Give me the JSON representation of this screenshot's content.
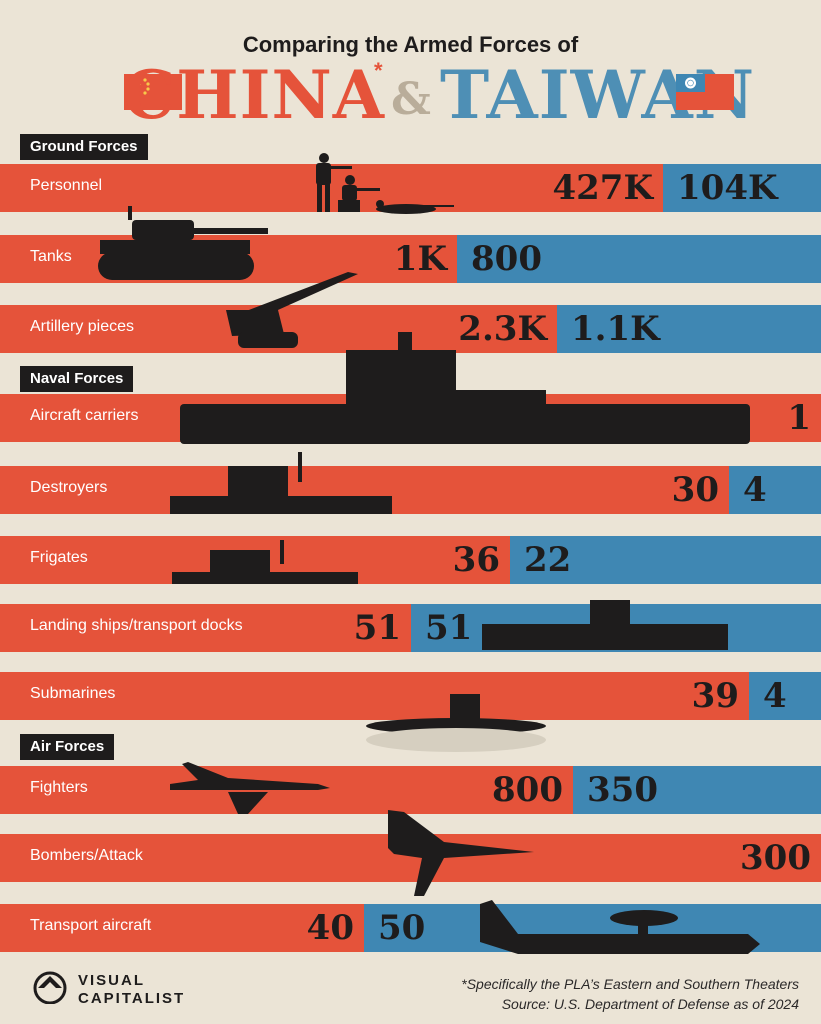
{
  "header": {
    "subtitle": "Comparing the Armed Forces of",
    "china": "CHINA",
    "ampersand": "&",
    "taiwan": "TAIWAN",
    "asterisk": "*"
  },
  "colors": {
    "china": "#e5533a",
    "taiwan": "#3f87b3",
    "background": "#ebe4d6"
  },
  "sections": [
    {
      "label": "Ground Forces"
    },
    {
      "label": "Naval Forces"
    },
    {
      "label": "Air Forces"
    }
  ],
  "chart_data": {
    "type": "bar",
    "categories": [
      "Personnel",
      "Tanks",
      "Artillery pieces",
      "Aircraft carriers",
      "Destroyers",
      "Frigates",
      "Landing ships/transport docks",
      "Submarines",
      "Fighters",
      "Bombers/Attack",
      "Transport aircraft"
    ],
    "series": [
      {
        "name": "CHINA",
        "labels": [
          "427K",
          "1K",
          "2.3K",
          "1",
          "30",
          "36",
          "51",
          "39",
          "800",
          "300",
          "40"
        ],
        "values": [
          427000,
          1000,
          2300,
          1,
          30,
          36,
          51,
          39,
          800,
          300,
          40
        ]
      },
      {
        "name": "TAIWAN",
        "labels": [
          "104K",
          "800",
          "1.1K",
          "",
          "4",
          "22",
          "51",
          "4",
          "350",
          "",
          "50"
        ],
        "values": [
          104000,
          800,
          1100,
          0,
          4,
          22,
          51,
          4,
          350,
          0,
          50
        ]
      }
    ]
  },
  "footer": {
    "logo_line1": "VISUAL",
    "logo_line2": "CAPITALIST",
    "note": "*Specifically the PLA’s Eastern and Southern Theaters",
    "source": "Source: U.S. Department of Defense as of 2024"
  }
}
